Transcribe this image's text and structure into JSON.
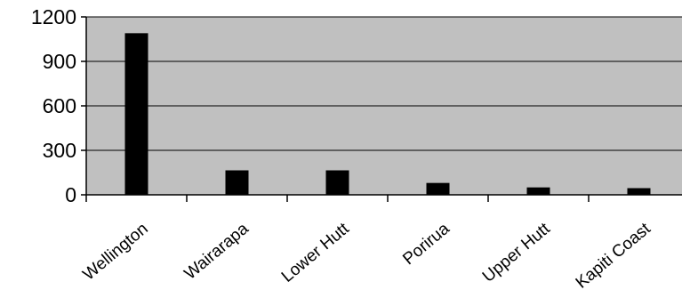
{
  "chart_data": {
    "type": "bar",
    "categories": [
      "Wellington",
      "Wairarapa",
      "Lower Hutt",
      "Porirua",
      "Upper Hutt",
      "Kapiti Coast"
    ],
    "values": [
      1090,
      165,
      165,
      80,
      50,
      45
    ],
    "ylim": [
      0,
      1200
    ],
    "yticks": [
      0,
      300,
      600,
      900,
      1200
    ],
    "grid": true,
    "legend": "none",
    "colors": {
      "plot_background": "#c0c0c0",
      "bar": "#000000",
      "gridline": "#000000",
      "axis": "#000000"
    }
  }
}
